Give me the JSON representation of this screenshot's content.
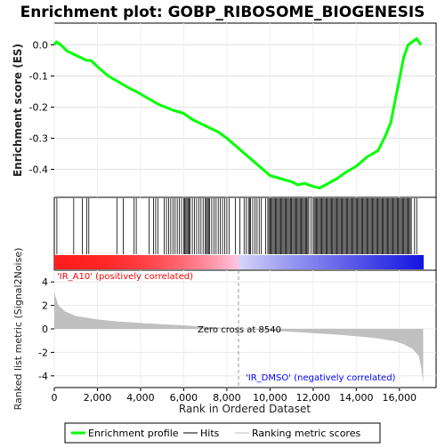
{
  "chart_data": {
    "type": "line",
    "title": "Enrichment plot: GOBP_RIBOSOME_BIOGENESIS",
    "top_panel": {
      "ylabel": "Enrichment score (ES)",
      "ylim": [
        -0.49,
        0.07
      ],
      "yticks": [
        0.0,
        -0.1,
        -0.2,
        -0.3,
        -0.4
      ],
      "ytick_labels": [
        "0.0",
        "-0.1",
        "-0.2",
        "-0.3",
        "-0.4"
      ],
      "series": [
        {
          "name": "Enrichment profile",
          "color": "#00ff00",
          "x": [
            0,
            100,
            300,
            600,
            900,
            1200,
            1500,
            1700,
            2000,
            2500,
            3000,
            3500,
            3800,
            4300,
            4800,
            5500,
            6000,
            6400,
            7000,
            7600,
            8000,
            8500,
            9000,
            9500,
            10000,
            10500,
            11000,
            11300,
            11600,
            12000,
            12300,
            12700,
            13100,
            13500,
            14000,
            14500,
            15000,
            15300,
            15600,
            15800,
            16000,
            16200,
            16400,
            16600,
            16800,
            17000
          ],
          "y": [
            0.0,
            0.01,
            0.0,
            -0.02,
            -0.03,
            -0.04,
            -0.05,
            -0.05,
            -0.07,
            -0.1,
            -0.12,
            -0.14,
            -0.15,
            -0.17,
            -0.19,
            -0.21,
            -0.22,
            -0.24,
            -0.26,
            -0.28,
            -0.3,
            -0.33,
            -0.36,
            -0.39,
            -0.42,
            -0.43,
            -0.44,
            -0.45,
            -0.445,
            -0.455,
            -0.46,
            -0.445,
            -0.43,
            -0.41,
            -0.39,
            -0.36,
            -0.34,
            -0.3,
            -0.25,
            -0.18,
            -0.11,
            -0.04,
            0.0,
            0.01,
            0.02,
            0.0
          ]
        }
      ]
    },
    "hits_panel": {
      "legend_label": "Hits",
      "hit_ranks": [
        120,
        900,
        1300,
        1500,
        1600,
        2900,
        3200,
        3700,
        3800,
        4400,
        4600,
        4700,
        4800,
        5100,
        5200,
        5300,
        5400,
        5500,
        5600,
        5700,
        5800,
        5900,
        6000,
        6050,
        6100,
        6150,
        6200,
        6250,
        6300,
        6400,
        6500,
        6600,
        6700,
        6800,
        6900,
        7000,
        7050,
        7100,
        7150,
        7200,
        7300,
        7400,
        7500,
        7600,
        7700,
        7800,
        7900,
        8000,
        8100,
        8400,
        8600,
        8800,
        8900,
        9000,
        9050,
        9100,
        9200,
        9300,
        9400,
        9500,
        9600,
        9800,
        9900,
        9950,
        10000,
        10050,
        10100,
        10150,
        10200,
        10250,
        10300,
        10350,
        10400,
        10450,
        10500,
        10550,
        10600,
        10650,
        10700,
        10750,
        10800,
        10850,
        10900,
        10950,
        11000,
        11050,
        11100,
        11150,
        11200,
        11250,
        11300,
        11350,
        11400,
        11450,
        11500,
        11550,
        11600,
        11650,
        11700,
        11750,
        11800,
        11900,
        12000,
        12050,
        12100,
        12150,
        12200,
        12250,
        12300,
        12350,
        12400,
        12450,
        12500,
        12550,
        12600,
        12650,
        12700,
        12750,
        12800,
        12850,
        12900,
        12950,
        13000,
        13050,
        13100,
        13150,
        13200,
        13250,
        13300,
        13350,
        13400,
        13450,
        13500,
        13550,
        13600,
        13650,
        13700,
        13750,
        13800,
        13850,
        13900,
        13950,
        14000,
        14050,
        14100,
        14150,
        14200,
        14250,
        14300,
        14350,
        14400,
        14450,
        14500,
        14550,
        14600,
        14650,
        14700,
        14750,
        14800,
        14850,
        14900,
        14950,
        15000,
        15050,
        15100,
        15150,
        15200,
        15250,
        15300,
        15350,
        15400,
        15450,
        15500,
        15550,
        15600,
        15650,
        15700,
        15750,
        15800,
        15850,
        15900,
        15950,
        16000,
        16050,
        16100,
        16150,
        16200,
        16250,
        16300,
        16350,
        16400,
        16450,
        16500,
        16550,
        16700,
        16800
      ]
    },
    "ranked_panel": {
      "xlabel": "Rank in Ordered Dataset",
      "ylabel": "Ranked list metric (Signal2Noise)",
      "ylim": [
        -5,
        5
      ],
      "yticks": [
        4,
        2,
        0,
        -2,
        -4
      ],
      "ytick_labels": [
        "4",
        "2",
        "0",
        "-2",
        "-4"
      ],
      "xlim": [
        0,
        17700
      ],
      "xticks": [
        0,
        2000,
        4000,
        6000,
        8000,
        10000,
        12000,
        14000,
        16000
      ],
      "xtick_labels": [
        "0",
        "2,000",
        "4,000",
        "6,000",
        "8,000",
        "10,000",
        "12,000",
        "14,000",
        "16,000"
      ],
      "n_genes": 17100,
      "zero_cross": 8540,
      "zero_cross_label": "Zero cross at 8540",
      "pos_label": "'IR_A10' (positively correlated)",
      "neg_label": "'IR_DMSO' (negatively correlated)",
      "pos_color": "#ff0000",
      "neg_color": "#0000ff",
      "metric_x": [
        0,
        50,
        200,
        500,
        1000,
        2000,
        3000,
        4000,
        5000,
        6000,
        7000,
        8000,
        8540,
        9000,
        10000,
        11000,
        12000,
        13000,
        14000,
        15000,
        15800,
        16200,
        16600,
        16900,
        17000,
        17100
      ],
      "metric_y": [
        3.2,
        2.8,
        2.0,
        1.5,
        1.1,
        0.8,
        0.62,
        0.5,
        0.4,
        0.3,
        0.18,
        0.08,
        0.0,
        -0.05,
        -0.15,
        -0.25,
        -0.36,
        -0.48,
        -0.62,
        -0.8,
        -1.05,
        -1.3,
        -1.7,
        -2.3,
        -3.2,
        -4.6
      ]
    },
    "legend": {
      "placement": "bottom",
      "entries": [
        {
          "label": "Enrichment profile",
          "color": "#00ff00"
        },
        {
          "label": "Hits",
          "color": "#000000"
        },
        {
          "label": "Ranking metric scores",
          "color": "#c0c0c0"
        }
      ]
    }
  }
}
